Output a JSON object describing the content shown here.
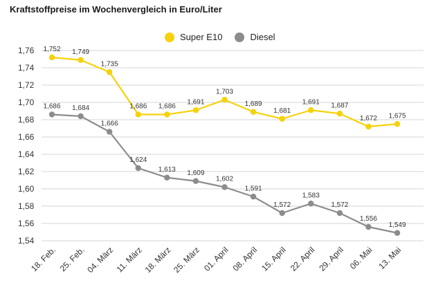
{
  "title": "Kraftstoffpreise im Wochenvergleich in Euro/Liter",
  "legend": {
    "super": "Super E10",
    "diesel": "Diesel"
  },
  "colors": {
    "super": "#f5d20a",
    "diesel": "#8c8c8c",
    "grid": "#d6d6d6",
    "text": "#333333"
  },
  "chart_data": {
    "type": "line",
    "title": "Kraftstoffpreise im Wochenvergleich in Euro/Liter",
    "xlabel": "",
    "ylabel": "",
    "ylim": [
      1.54,
      1.76
    ],
    "yticks": [
      "1,54",
      "1,56",
      "1,58",
      "1,60",
      "1,62",
      "1,64",
      "1,66",
      "1,68",
      "1,70",
      "1,72",
      "1,74",
      "1,76"
    ],
    "categories": [
      "18. Feb.",
      "25. Feb.",
      "04. März",
      "11. März",
      "18. März",
      "25. März",
      "01. April",
      "08. April",
      "15. April",
      "22. April",
      "29. April",
      "06. Mai",
      "13. Mai"
    ],
    "grid": true,
    "legend_position": "top-center",
    "series": [
      {
        "name": "Super E10",
        "values": [
          1.752,
          1.749,
          1.735,
          1.686,
          1.686,
          1.691,
          1.703,
          1.689,
          1.681,
          1.691,
          1.687,
          1.672,
          1.675
        ],
        "labels": [
          "1,752",
          "1,749",
          "1,735",
          "1,686",
          "1,686",
          "1,691",
          "1,703",
          "1,689",
          "1,681",
          "1,691",
          "1,687",
          "1,672",
          "1,675"
        ]
      },
      {
        "name": "Diesel",
        "values": [
          1.686,
          1.684,
          1.666,
          1.624,
          1.613,
          1.609,
          1.602,
          1.591,
          1.572,
          1.583,
          1.572,
          1.556,
          1.549
        ],
        "labels": [
          "1,686",
          "1,684",
          "1,666",
          "1,624",
          "1,613",
          "1,609",
          "1,602",
          "1,591",
          "1,572",
          "1,583",
          "1,572",
          "1,556",
          "1,549"
        ]
      }
    ]
  }
}
